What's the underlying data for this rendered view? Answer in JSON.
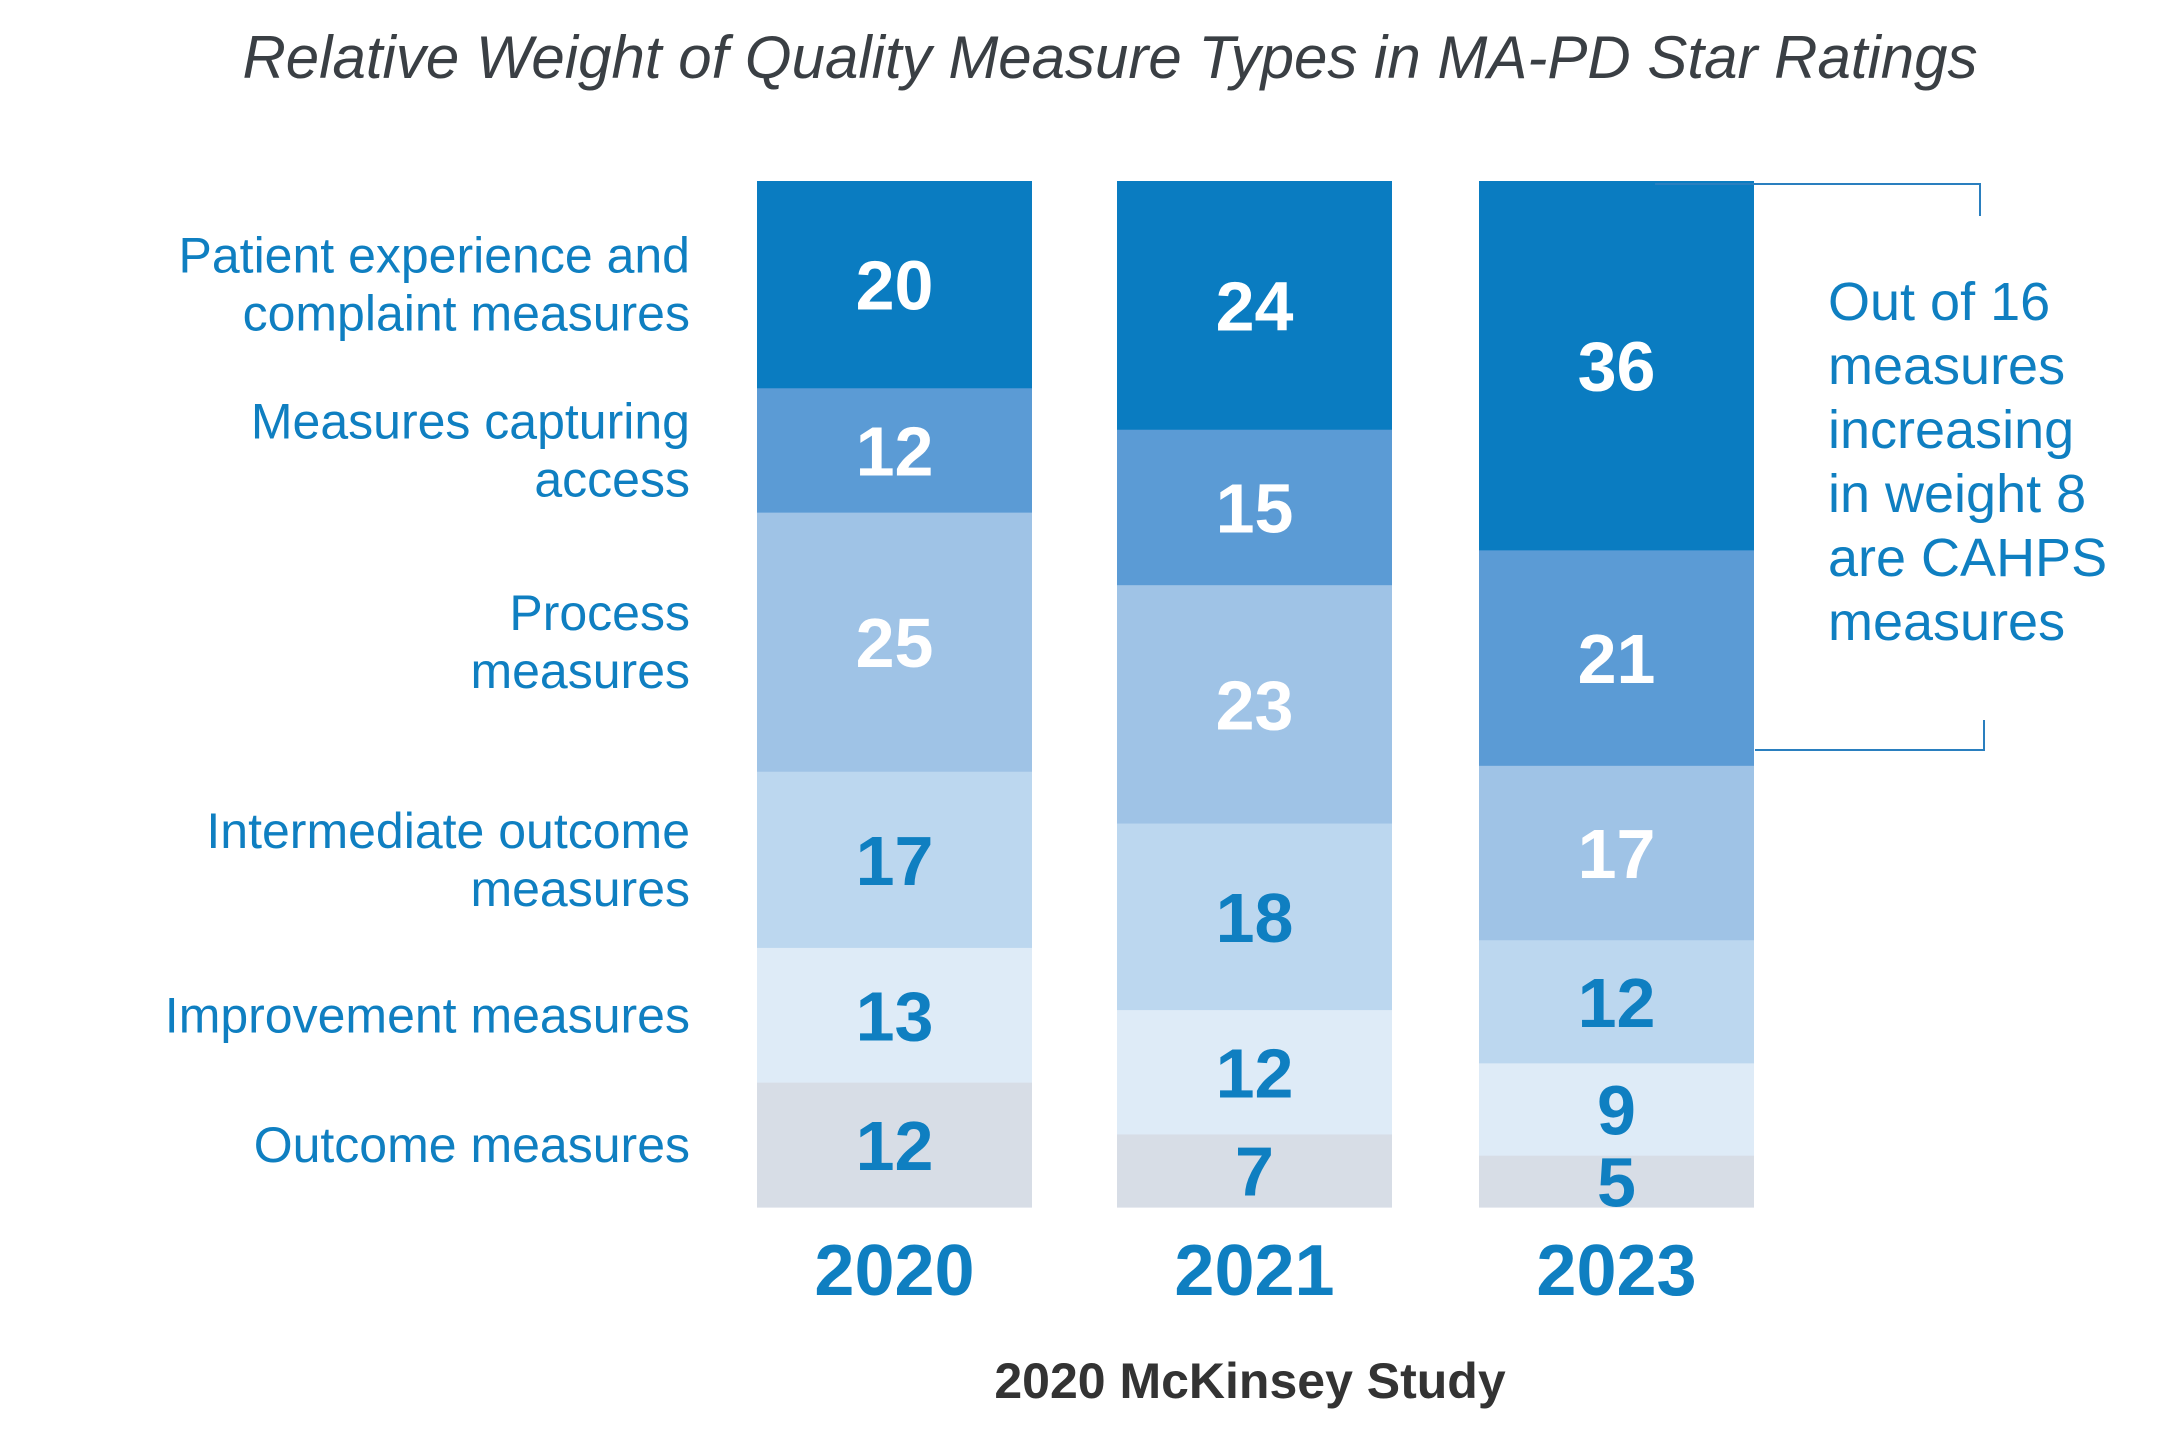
{
  "chart_data": {
    "type": "bar",
    "stacked": true,
    "title": "Relative Weight of Quality Measure Types in MA-PD Star Ratings",
    "categories": [
      "2020",
      "2021",
      "2023"
    ],
    "series": [
      {
        "name": "Patient experience and complaint measures",
        "label_lines": [
          "Patient experience and",
          "complaint measures"
        ],
        "values": [
          20,
          24,
          36
        ],
        "color": "#0a7cc1",
        "text_color": "#ffffff"
      },
      {
        "name": "Measures capturing access",
        "label_lines": [
          "Measures capturing",
          "access"
        ],
        "values": [
          12,
          15,
          21
        ],
        "color": "#5b9bd5",
        "text_color": "#ffffff"
      },
      {
        "name": "Process measures",
        "label_lines": [
          "Process",
          "measures"
        ],
        "values": [
          25,
          23,
          17
        ],
        "color": "#9fc3e6",
        "text_color": "#ffffff"
      },
      {
        "name": "Intermediate outcome measures",
        "label_lines": [
          "Intermediate outcome",
          "measures"
        ],
        "values": [
          17,
          18,
          12
        ],
        "color": "#bcd7ef",
        "text_color": "#0f7fc1"
      },
      {
        "name": "Improvement measures",
        "label_lines": [
          "Improvement measures"
        ],
        "values": [
          13,
          12,
          9
        ],
        "color": "#deebf7",
        "text_color": "#0f7fc1"
      },
      {
        "name": "Outcome measures",
        "label_lines": [
          "Outcome measures"
        ],
        "values": [
          12,
          7,
          5
        ],
        "color": "#d7dde6",
        "text_color": "#0f7fc1"
      }
    ],
    "annotation": {
      "lines": [
        "Out of 16",
        "measures",
        "increasing",
        "in weight 8",
        "are CAHPS",
        "measures"
      ]
    },
    "source": "2020 McKinsey Study"
  }
}
